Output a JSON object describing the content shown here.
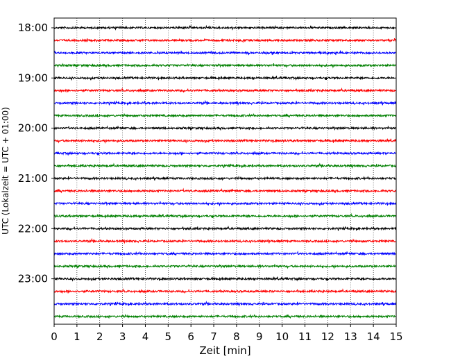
{
  "chart_data": {
    "type": "line",
    "title": "",
    "xlabel": "Zeit  [min]",
    "ylabel": "UTC (Lokalzeit = UTC + 01:00)",
    "xlim": [
      0,
      15
    ],
    "x_ticks": [
      "0",
      "1",
      "2",
      "3",
      "4",
      "5",
      "6",
      "7",
      "8",
      "9",
      "10",
      "11",
      "12",
      "13",
      "14",
      "15"
    ],
    "y_ticks": [
      "18:00",
      "19:00",
      "20:00",
      "21:00",
      "22:00",
      "23:00"
    ],
    "trace_interval_min": 15,
    "vertical_grid": "dotted",
    "colors": [
      "#000000",
      "#ff0000",
      "#0000ff",
      "#008000"
    ],
    "traces": [
      {
        "start": "18:00",
        "color": "#000000"
      },
      {
        "start": "18:15",
        "color": "#ff0000"
      },
      {
        "start": "18:30",
        "color": "#0000ff"
      },
      {
        "start": "18:45",
        "color": "#008000"
      },
      {
        "start": "19:00",
        "color": "#000000"
      },
      {
        "start": "19:15",
        "color": "#ff0000"
      },
      {
        "start": "19:30",
        "color": "#0000ff"
      },
      {
        "start": "19:45",
        "color": "#008000"
      },
      {
        "start": "20:00",
        "color": "#000000"
      },
      {
        "start": "20:15",
        "color": "#ff0000"
      },
      {
        "start": "20:30",
        "color": "#0000ff"
      },
      {
        "start": "20:45",
        "color": "#008000"
      },
      {
        "start": "21:00",
        "color": "#000000"
      },
      {
        "start": "21:15",
        "color": "#ff0000"
      },
      {
        "start": "21:30",
        "color": "#0000ff"
      },
      {
        "start": "21:45",
        "color": "#008000"
      },
      {
        "start": "22:00",
        "color": "#000000"
      },
      {
        "start": "22:15",
        "color": "#ff0000"
      },
      {
        "start": "22:30",
        "color": "#0000ff"
      },
      {
        "start": "22:45",
        "color": "#008000"
      },
      {
        "start": "23:00",
        "color": "#000000"
      },
      {
        "start": "23:15",
        "color": "#ff0000"
      },
      {
        "start": "23:30",
        "color": "#0000ff"
      },
      {
        "start": "23:45",
        "color": "#008000"
      }
    ]
  }
}
